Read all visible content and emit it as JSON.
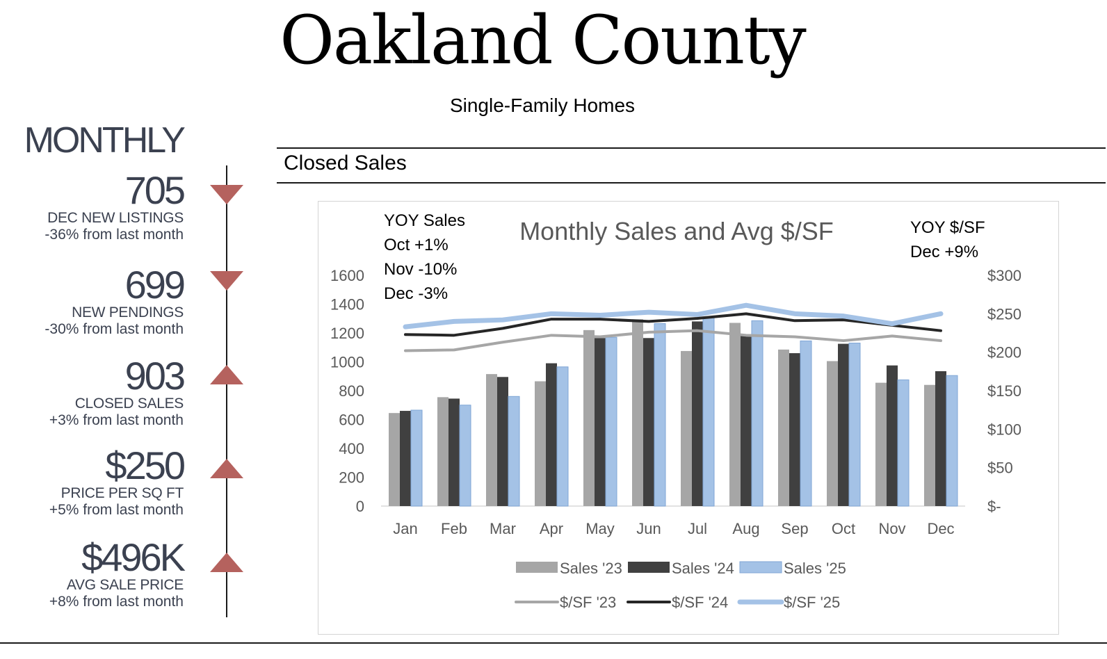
{
  "page": {
    "title": "Oakland County",
    "subtitle": "Single-Family Homes",
    "period_label": "MONTHLY",
    "section_title": "Closed Sales"
  },
  "metrics": [
    {
      "value": "705",
      "label": "DEC NEW LISTINGS",
      "change": "-36% from last month",
      "direction": "down"
    },
    {
      "value": "699",
      "label": "NEW PENDINGS",
      "change": "-30% from last month",
      "direction": "down"
    },
    {
      "value": "903",
      "label": "CLOSED SALES",
      "change": "+3% from last month",
      "direction": "up"
    },
    {
      "value": "$250",
      "label": "PRICE PER SQ FT",
      "change": "+5% from last month",
      "direction": "up"
    },
    {
      "value": "$496K",
      "label": "AVG SALE PRICE",
      "change": "+8% from last month",
      "direction": "up"
    }
  ],
  "colors": {
    "accent_triangle": "#b5625e",
    "sales_23": "#a6a6a6",
    "sales_24": "#404040",
    "sales_25": "#a4c2e6",
    "line_23": "#a6a6a6",
    "line_24": "#262626",
    "line_25": "#a4c2e6"
  },
  "chart_data": {
    "type": "bar",
    "title": "Monthly Sales and Avg $/SF",
    "categories": [
      "Jan",
      "Feb",
      "Mar",
      "Apr",
      "May",
      "Jun",
      "Jul",
      "Aug",
      "Sep",
      "Oct",
      "Nov",
      "Dec"
    ],
    "bar_series": [
      {
        "name": "Sales '23",
        "values": [
          645,
          755,
          915,
          865,
          1220,
          1295,
          1075,
          1270,
          1085,
          1005,
          855,
          840
        ]
      },
      {
        "name": "Sales '24",
        "values": [
          660,
          745,
          895,
          990,
          1165,
          1165,
          1280,
          1180,
          1060,
          1125,
          975,
          935
        ]
      },
      {
        "name": "Sales '25",
        "values": [
          665,
          700,
          760,
          965,
          1170,
          1265,
          1310,
          1285,
          1145,
          1130,
          875,
          905
        ]
      }
    ],
    "line_series": [
      {
        "name": "$/SF '23",
        "values": [
          202,
          203,
          213,
          222,
          220,
          226,
          228,
          222,
          220,
          215,
          221,
          215
        ]
      },
      {
        "name": "$/SF '24",
        "values": [
          223,
          222,
          231,
          243,
          243,
          240,
          244,
          250,
          241,
          242,
          235,
          228
        ]
      },
      {
        "name": "$/SF '25",
        "values": [
          233,
          240,
          242,
          250,
          248,
          252,
          249,
          261,
          250,
          247,
          237,
          250
        ]
      }
    ],
    "y_left": {
      "min": 0,
      "max": 1600,
      "ticks": [
        "0",
        "200",
        "400",
        "600",
        "800",
        "1000",
        "1200",
        "1400",
        "1600"
      ]
    },
    "y_right": {
      "min": 0,
      "max": 300,
      "ticks": [
        "$-",
        "$50",
        "$100",
        "$150",
        "$200",
        "$250",
        "$300"
      ]
    },
    "annotations": {
      "yoy_sales": [
        "YOY Sales",
        "Oct +1%",
        "Nov -10%",
        "Dec -3%"
      ],
      "yoy_sf": [
        "YOY $/SF",
        "Dec +9%"
      ]
    },
    "legend_position": "bottom"
  }
}
